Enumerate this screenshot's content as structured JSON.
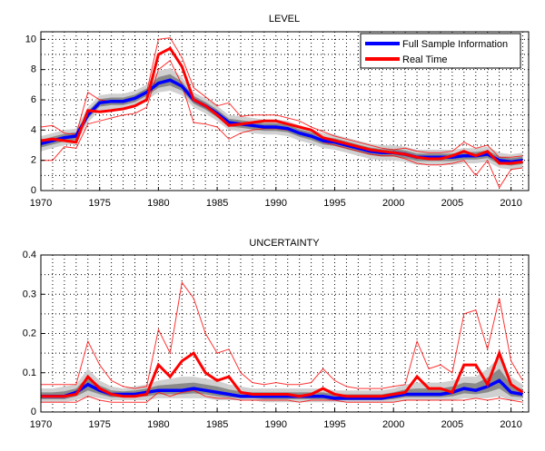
{
  "chart_data": [
    {
      "type": "line",
      "title": "LEVEL",
      "xlim": [
        1970,
        2011.5
      ],
      "ylim": [
        0,
        10.5
      ],
      "xticks": [
        1970,
        1975,
        1980,
        1985,
        1990,
        1995,
        2000,
        2005,
        2010
      ],
      "yticks": [
        0,
        2,
        4,
        6,
        8,
        10
      ],
      "ygrid_step": 1,
      "grid": true,
      "legend": {
        "placement": "top-right",
        "entries": [
          {
            "name": "Full Sample Information",
            "color": "#0000ff"
          },
          {
            "name": "Real Time",
            "color": "#ff0000"
          }
        ]
      },
      "x": [
        1970,
        1971,
        1972,
        1973,
        1974,
        1975,
        1976,
        1977,
        1978,
        1979,
        1980,
        1981,
        1982,
        1983,
        1984,
        1985,
        1986,
        1987,
        1988,
        1989,
        1990,
        1991,
        1992,
        1993,
        1994,
        1995,
        1996,
        1997,
        1998,
        1999,
        2000,
        2001,
        2002,
        2003,
        2004,
        2005,
        2006,
        2007,
        2008,
        2009,
        2010,
        2011
      ],
      "series": [
        {
          "name": "Full Sample Information",
          "color": "#0000ff",
          "values": [
            3.1,
            3.3,
            3.5,
            3.6,
            5.0,
            5.8,
            5.9,
            5.9,
            6.1,
            6.5,
            7.1,
            7.3,
            6.9,
            6.0,
            5.6,
            5.1,
            4.5,
            4.4,
            4.3,
            4.2,
            4.2,
            4.1,
            3.8,
            3.6,
            3.3,
            3.2,
            3.0,
            2.8,
            2.6,
            2.5,
            2.5,
            2.4,
            2.2,
            2.2,
            2.2,
            2.2,
            2.3,
            2.3,
            2.4,
            2.0,
            1.9,
            2.0
          ],
          "band_upper": [
            3.6,
            3.8,
            4.0,
            4.1,
            5.5,
            6.3,
            6.4,
            6.4,
            6.6,
            7.0,
            7.9,
            8.1,
            7.5,
            6.5,
            6.1,
            5.6,
            5.0,
            4.9,
            4.8,
            4.7,
            4.7,
            4.6,
            4.3,
            4.1,
            3.8,
            3.7,
            3.5,
            3.3,
            3.1,
            3.0,
            3.0,
            2.9,
            2.7,
            2.7,
            2.7,
            2.7,
            2.8,
            2.8,
            2.9,
            2.5,
            2.4,
            2.5
          ],
          "band_lower": [
            2.6,
            2.8,
            3.0,
            3.1,
            4.5,
            5.3,
            5.4,
            5.4,
            5.6,
            6.0,
            6.5,
            6.6,
            6.3,
            5.5,
            5.1,
            4.6,
            4.0,
            3.9,
            3.8,
            3.7,
            3.7,
            3.6,
            3.3,
            3.1,
            2.8,
            2.7,
            2.5,
            2.3,
            2.1,
            2.0,
            2.0,
            1.9,
            1.7,
            1.7,
            1.7,
            1.7,
            1.8,
            1.8,
            1.9,
            1.5,
            1.4,
            1.5
          ]
        },
        {
          "name": "Real Time",
          "color": "#ff0000",
          "values": [
            3.3,
            3.4,
            3.3,
            3.2,
            5.3,
            5.2,
            5.3,
            5.4,
            5.6,
            6.0,
            9.0,
            9.4,
            8.2,
            6.0,
            5.6,
            5.0,
            4.3,
            4.4,
            4.5,
            4.6,
            4.6,
            4.4,
            4.2,
            4.0,
            3.5,
            3.3,
            3.1,
            2.9,
            2.7,
            2.6,
            2.5,
            2.4,
            2.2,
            2.1,
            2.1,
            2.3,
            2.6,
            2.3,
            2.6,
            1.8,
            1.8,
            1.9
          ],
          "band_upper": [
            4.2,
            4.3,
            3.8,
            3.7,
            6.5,
            6.0,
            5.9,
            5.9,
            6.1,
            6.5,
            10.0,
            10.1,
            8.8,
            6.8,
            6.2,
            5.6,
            5.8,
            4.9,
            5.0,
            5.0,
            5.0,
            4.8,
            4.6,
            4.2,
            3.9,
            3.6,
            3.4,
            3.2,
            3.0,
            2.8,
            2.7,
            2.8,
            2.6,
            2.5,
            2.5,
            2.6,
            3.2,
            2.8,
            3.0,
            2.2,
            2.2,
            2.3
          ],
          "band_lower": [
            2.0,
            2.0,
            2.9,
            2.8,
            4.4,
            4.6,
            4.8,
            5.0,
            5.1,
            5.5,
            8.0,
            8.6,
            7.0,
            4.5,
            4.4,
            4.2,
            3.4,
            3.8,
            4.0,
            4.1,
            4.1,
            4.0,
            3.8,
            3.6,
            3.2,
            3.0,
            2.8,
            2.6,
            2.4,
            2.3,
            2.3,
            2.1,
            1.8,
            1.7,
            1.7,
            1.8,
            2.0,
            1.0,
            2.0,
            0.2,
            1.4,
            1.5
          ]
        }
      ]
    },
    {
      "type": "line",
      "title": "UNCERTAINTY",
      "xlim": [
        1970,
        2011.5
      ],
      "ylim": [
        0,
        0.4
      ],
      "xticks": [
        1970,
        1975,
        1980,
        1985,
        1990,
        1995,
        2000,
        2005,
        2010
      ],
      "yticks": [
        0,
        0.1,
        0.2,
        0.3,
        0.4
      ],
      "ygrid_step": 0.05,
      "grid": true,
      "x": [
        1970,
        1971,
        1972,
        1973,
        1974,
        1975,
        1976,
        1977,
        1978,
        1979,
        1980,
        1981,
        1982,
        1983,
        1984,
        1985,
        1986,
        1987,
        1988,
        1989,
        1990,
        1991,
        1992,
        1993,
        1994,
        1995,
        1996,
        1997,
        1998,
        1999,
        2000,
        2001,
        2002,
        2003,
        2004,
        2005,
        2006,
        2007,
        2008,
        2009,
        2010,
        2011
      ],
      "series": [
        {
          "name": "Full Sample Information",
          "color": "#0000ff",
          "values": [
            0.04,
            0.04,
            0.04,
            0.05,
            0.07,
            0.055,
            0.045,
            0.045,
            0.045,
            0.05,
            0.055,
            0.055,
            0.055,
            0.06,
            0.055,
            0.05,
            0.045,
            0.04,
            0.04,
            0.04,
            0.04,
            0.04,
            0.04,
            0.04,
            0.04,
            0.035,
            0.035,
            0.035,
            0.035,
            0.035,
            0.04,
            0.045,
            0.045,
            0.045,
            0.045,
            0.05,
            0.06,
            0.055,
            0.065,
            0.08,
            0.05,
            0.045
          ],
          "band_upper": [
            0.06,
            0.06,
            0.065,
            0.07,
            0.11,
            0.08,
            0.065,
            0.06,
            0.065,
            0.07,
            0.08,
            0.085,
            0.09,
            0.09,
            0.085,
            0.08,
            0.07,
            0.065,
            0.06,
            0.06,
            0.06,
            0.06,
            0.06,
            0.06,
            0.06,
            0.055,
            0.055,
            0.055,
            0.055,
            0.055,
            0.06,
            0.07,
            0.075,
            0.075,
            0.075,
            0.08,
            0.09,
            0.09,
            0.11,
            0.14,
            0.09,
            0.07
          ],
          "band_lower": [
            0.025,
            0.025,
            0.025,
            0.03,
            0.04,
            0.035,
            0.03,
            0.03,
            0.03,
            0.03,
            0.035,
            0.035,
            0.035,
            0.035,
            0.035,
            0.03,
            0.03,
            0.03,
            0.03,
            0.025,
            0.025,
            0.025,
            0.025,
            0.025,
            0.025,
            0.025,
            0.025,
            0.025,
            0.025,
            0.025,
            0.025,
            0.03,
            0.03,
            0.03,
            0.03,
            0.03,
            0.035,
            0.035,
            0.035,
            0.04,
            0.03,
            0.03
          ]
        },
        {
          "name": "Real Time",
          "color": "#ff0000",
          "values": [
            0.04,
            0.04,
            0.04,
            0.045,
            0.09,
            0.06,
            0.045,
            0.04,
            0.04,
            0.045,
            0.12,
            0.09,
            0.13,
            0.15,
            0.1,
            0.08,
            0.09,
            0.05,
            0.045,
            0.045,
            0.045,
            0.045,
            0.04,
            0.045,
            0.06,
            0.045,
            0.04,
            0.04,
            0.04,
            0.04,
            0.045,
            0.05,
            0.09,
            0.06,
            0.06,
            0.05,
            0.12,
            0.12,
            0.07,
            0.15,
            0.07,
            0.05
          ],
          "band_upper": [
            0.07,
            0.07,
            0.07,
            0.07,
            0.18,
            0.12,
            0.08,
            0.065,
            0.06,
            0.065,
            0.21,
            0.15,
            0.33,
            0.29,
            0.2,
            0.15,
            0.16,
            0.1,
            0.075,
            0.07,
            0.075,
            0.07,
            0.07,
            0.075,
            0.11,
            0.08,
            0.065,
            0.06,
            0.06,
            0.06,
            0.065,
            0.07,
            0.18,
            0.11,
            0.12,
            0.1,
            0.25,
            0.26,
            0.16,
            0.29,
            0.13,
            0.08
          ],
          "band_lower": [
            0.025,
            0.025,
            0.025,
            0.025,
            0.04,
            0.03,
            0.025,
            0.025,
            0.025,
            0.025,
            0.05,
            0.04,
            0.05,
            0.055,
            0.04,
            0.035,
            0.035,
            0.03,
            0.03,
            0.03,
            0.03,
            0.03,
            0.025,
            0.03,
            0.03,
            0.03,
            0.025,
            0.025,
            0.025,
            0.025,
            0.025,
            0.03,
            0.03,
            0.03,
            0.03,
            0.03,
            0.03,
            0.035,
            0.03,
            0.035,
            0.03,
            0.025
          ]
        }
      ]
    }
  ]
}
